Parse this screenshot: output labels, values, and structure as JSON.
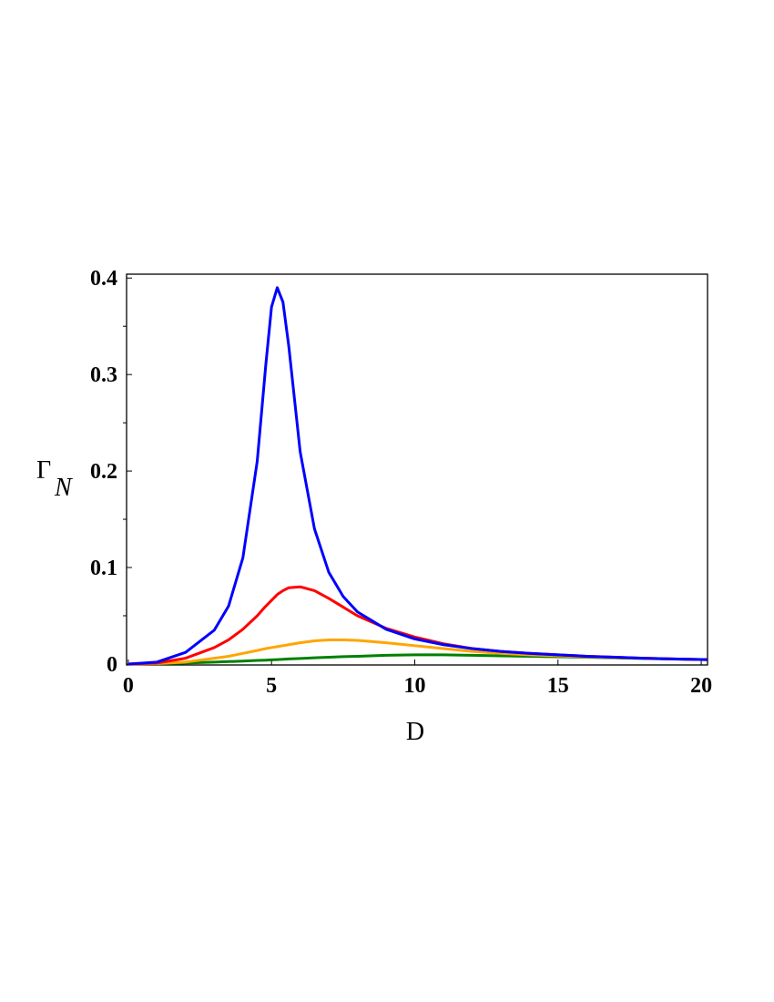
{
  "chart_data": {
    "type": "line",
    "x_label": "D",
    "y_label": {
      "main": "Γ",
      "subscript": "N"
    },
    "xlim": [
      -0.06,
      20.22
    ],
    "ylim": [
      -0.001,
      0.404
    ],
    "xticks": [
      0,
      5,
      10,
      15,
      20
    ],
    "yticks": [
      0,
      0.1,
      0.2,
      0.3,
      0.4
    ],
    "yminorticks": [
      0.05,
      0.15,
      0.25,
      0.35
    ],
    "x": [
      0,
      1,
      2,
      3,
      3.5,
      4,
      4.5,
      4.8,
      5,
      5.2,
      5.4,
      5.6,
      6,
      6.5,
      7,
      7.5,
      8,
      9,
      10,
      11,
      12,
      13,
      14,
      15,
      16,
      17,
      18,
      19,
      20.2
    ],
    "series": [
      {
        "color": "#0000ff",
        "values": [
          0,
          0.002,
          0.012,
          0.035,
          0.06,
          0.11,
          0.21,
          0.31,
          0.37,
          0.39,
          0.375,
          0.33,
          0.22,
          0.14,
          0.095,
          0.07,
          0.054,
          0.036,
          0.026,
          0.02,
          0.016,
          0.013,
          0.011,
          0.0095,
          0.008,
          0.007,
          0.006,
          0.0052,
          0.0045
        ]
      },
      {
        "color": "#ff0000",
        "values": [
          0,
          0.001,
          0.006,
          0.017,
          0.025,
          0.036,
          0.05,
          0.06,
          0.066,
          0.072,
          0.076,
          0.079,
          0.08,
          0.076,
          0.068,
          0.059,
          0.05,
          0.037,
          0.028,
          0.021,
          0.016,
          0.013,
          0.011,
          0.0095,
          0.008,
          0.007,
          0.006,
          0.0052,
          0.0045
        ]
      },
      {
        "color": "#ffa500",
        "values": [
          0,
          0.0005,
          0.002,
          0.006,
          0.008,
          0.011,
          0.014,
          0.016,
          0.017,
          0.018,
          0.019,
          0.02,
          0.022,
          0.024,
          0.025,
          0.025,
          0.0245,
          0.022,
          0.019,
          0.016,
          0.013,
          0.011,
          0.0095,
          0.0085,
          0.0075,
          0.0065,
          0.006,
          0.0052,
          0.0045
        ]
      },
      {
        "color": "#008000",
        "values": [
          0,
          0.0002,
          0.001,
          0.002,
          0.0025,
          0.003,
          0.0037,
          0.004,
          0.0043,
          0.0046,
          0.0049,
          0.0052,
          0.0057,
          0.0064,
          0.007,
          0.0076,
          0.008,
          0.009,
          0.0095,
          0.0095,
          0.009,
          0.0085,
          0.008,
          0.0075,
          0.007,
          0.0063,
          0.0057,
          0.0051,
          0.0045
        ]
      }
    ]
  }
}
